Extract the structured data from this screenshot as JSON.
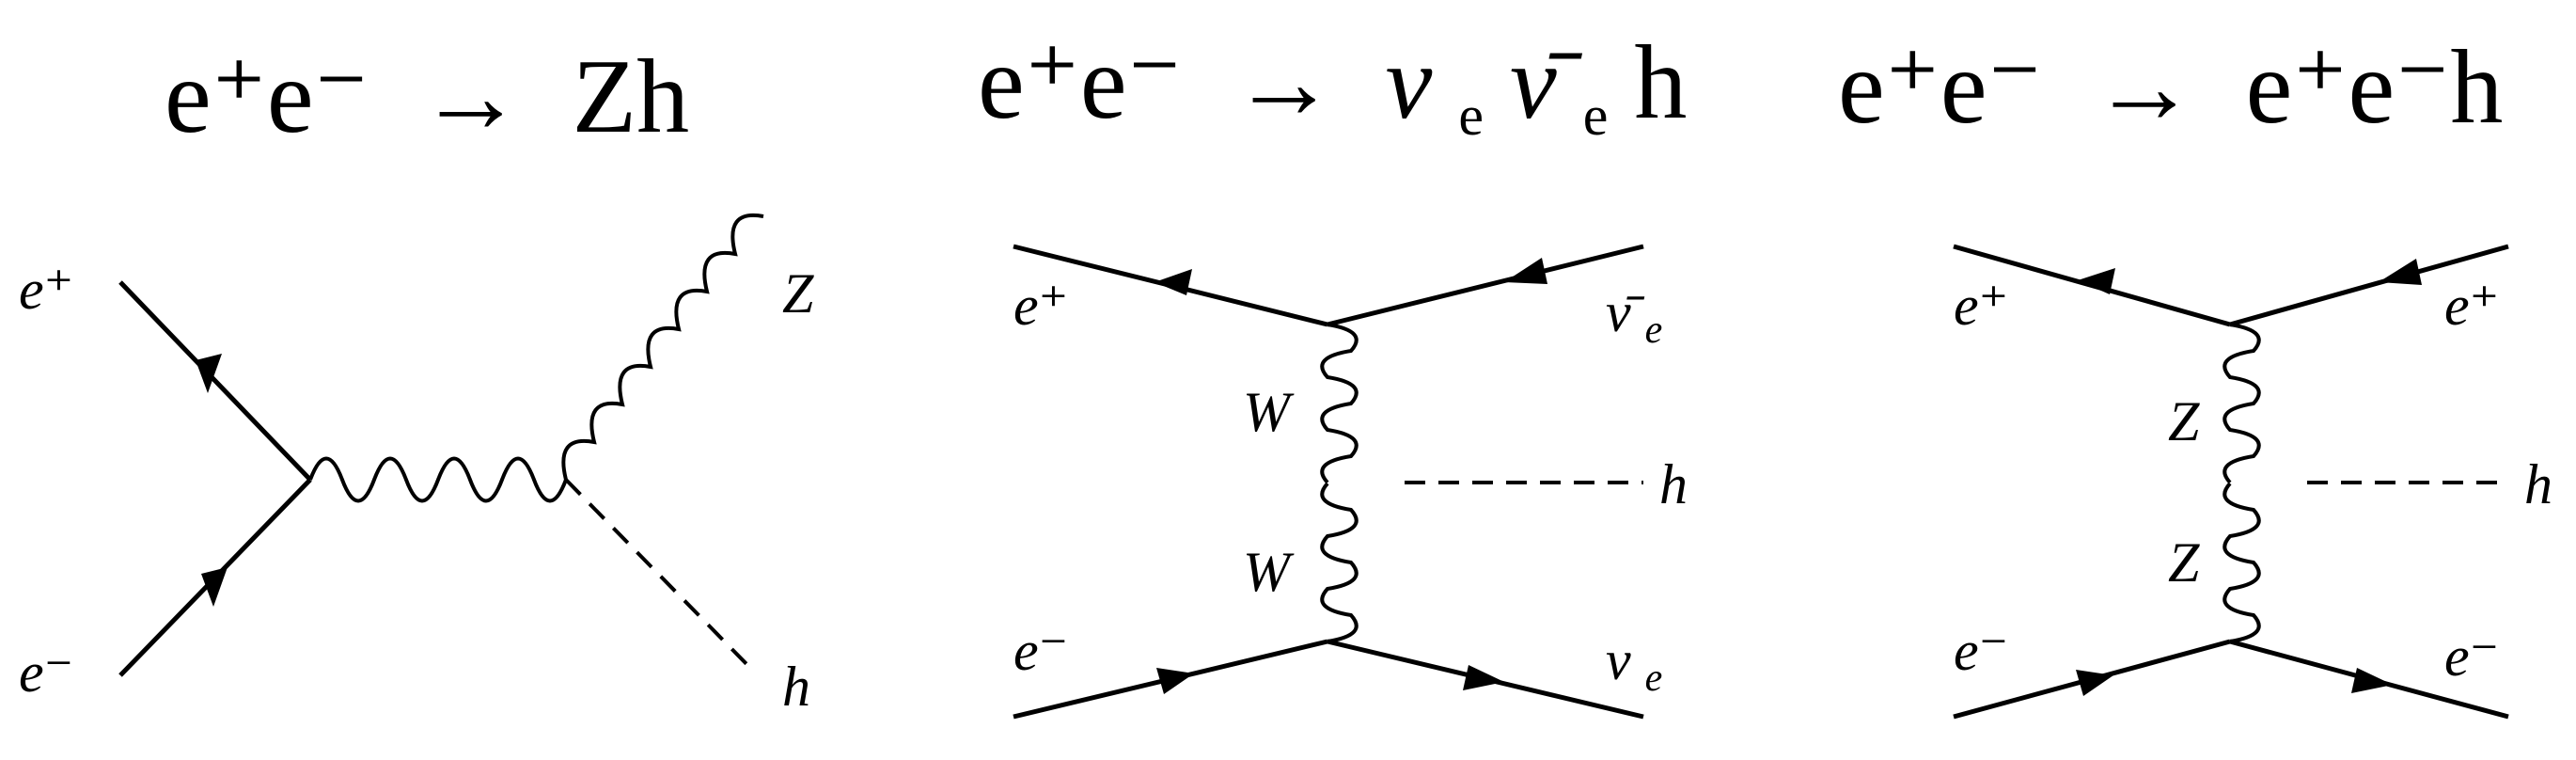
{
  "diagrams": [
    {
      "title": {
        "initial": "e⁺e⁻",
        "arrow": "→",
        "final": "Zh"
      },
      "labels": {
        "e_plus": "e⁺",
        "e_minus": "e⁻",
        "z": "Z",
        "h": "h"
      }
    },
    {
      "title": {
        "initial": "e⁺e⁻",
        "arrow": "→",
        "nu": "ν",
        "sub1": "e",
        "nubar": "ν̄",
        "sub2": "e",
        "higgs": "h"
      },
      "labels": {
        "e_plus": "e⁺",
        "e_minus": "e⁻",
        "nubar_nu": "ν̄",
        "nubar_sub": "e",
        "nu_nu": "ν",
        "nu_sub": "e",
        "w_upper": "W",
        "w_lower": "W",
        "h": "h"
      }
    },
    {
      "title": {
        "initial": "e⁺e⁻",
        "arrow": "→",
        "final": "e⁺e⁻h"
      },
      "labels": {
        "e_plus_in": "e⁺",
        "e_minus_in": "e⁻",
        "e_plus_out": "e⁺",
        "e_minus_out": "e⁻",
        "z_upper": "Z",
        "z_lower": "Z",
        "h": "h"
      }
    }
  ]
}
